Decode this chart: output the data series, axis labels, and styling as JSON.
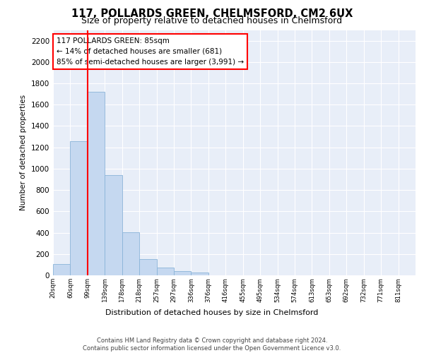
{
  "title_line1": "117, POLLARDS GREEN, CHELMSFORD, CM2 6UX",
  "title_line2": "Size of property relative to detached houses in Chelmsford",
  "xlabel": "Distribution of detached houses by size in Chelmsford",
  "ylabel": "Number of detached properties",
  "footer_line1": "Contains HM Land Registry data © Crown copyright and database right 2024.",
  "footer_line2": "Contains public sector information licensed under the Open Government Licence v3.0.",
  "annotation_title": "117 POLLARDS GREEN: 85sqm",
  "annotation_line1": "← 14% of detached houses are smaller (681)",
  "annotation_line2": "85% of semi-detached houses are larger (3,991) →",
  "bin_labels": [
    "20sqm",
    "60sqm",
    "99sqm",
    "139sqm",
    "178sqm",
    "218sqm",
    "257sqm",
    "297sqm",
    "336sqm",
    "376sqm",
    "416sqm",
    "455sqm",
    "495sqm",
    "534sqm",
    "574sqm",
    "613sqm",
    "653sqm",
    "692sqm",
    "732sqm",
    "771sqm",
    "811sqm"
  ],
  "bar_values": [
    107,
    1260,
    1720,
    940,
    405,
    150,
    72,
    42,
    25,
    0,
    0,
    0,
    0,
    0,
    0,
    0,
    0,
    0,
    0,
    0,
    0
  ],
  "bar_color": "#c5d8f0",
  "bar_edge_color": "#8ab4d8",
  "marker_color": "red",
  "ylim": [
    0,
    2300
  ],
  "yticks": [
    0,
    200,
    400,
    600,
    800,
    1000,
    1200,
    1400,
    1600,
    1800,
    2000,
    2200
  ],
  "background_color": "#e8eef8",
  "annotation_box_color": "white",
  "annotation_box_edge": "red"
}
